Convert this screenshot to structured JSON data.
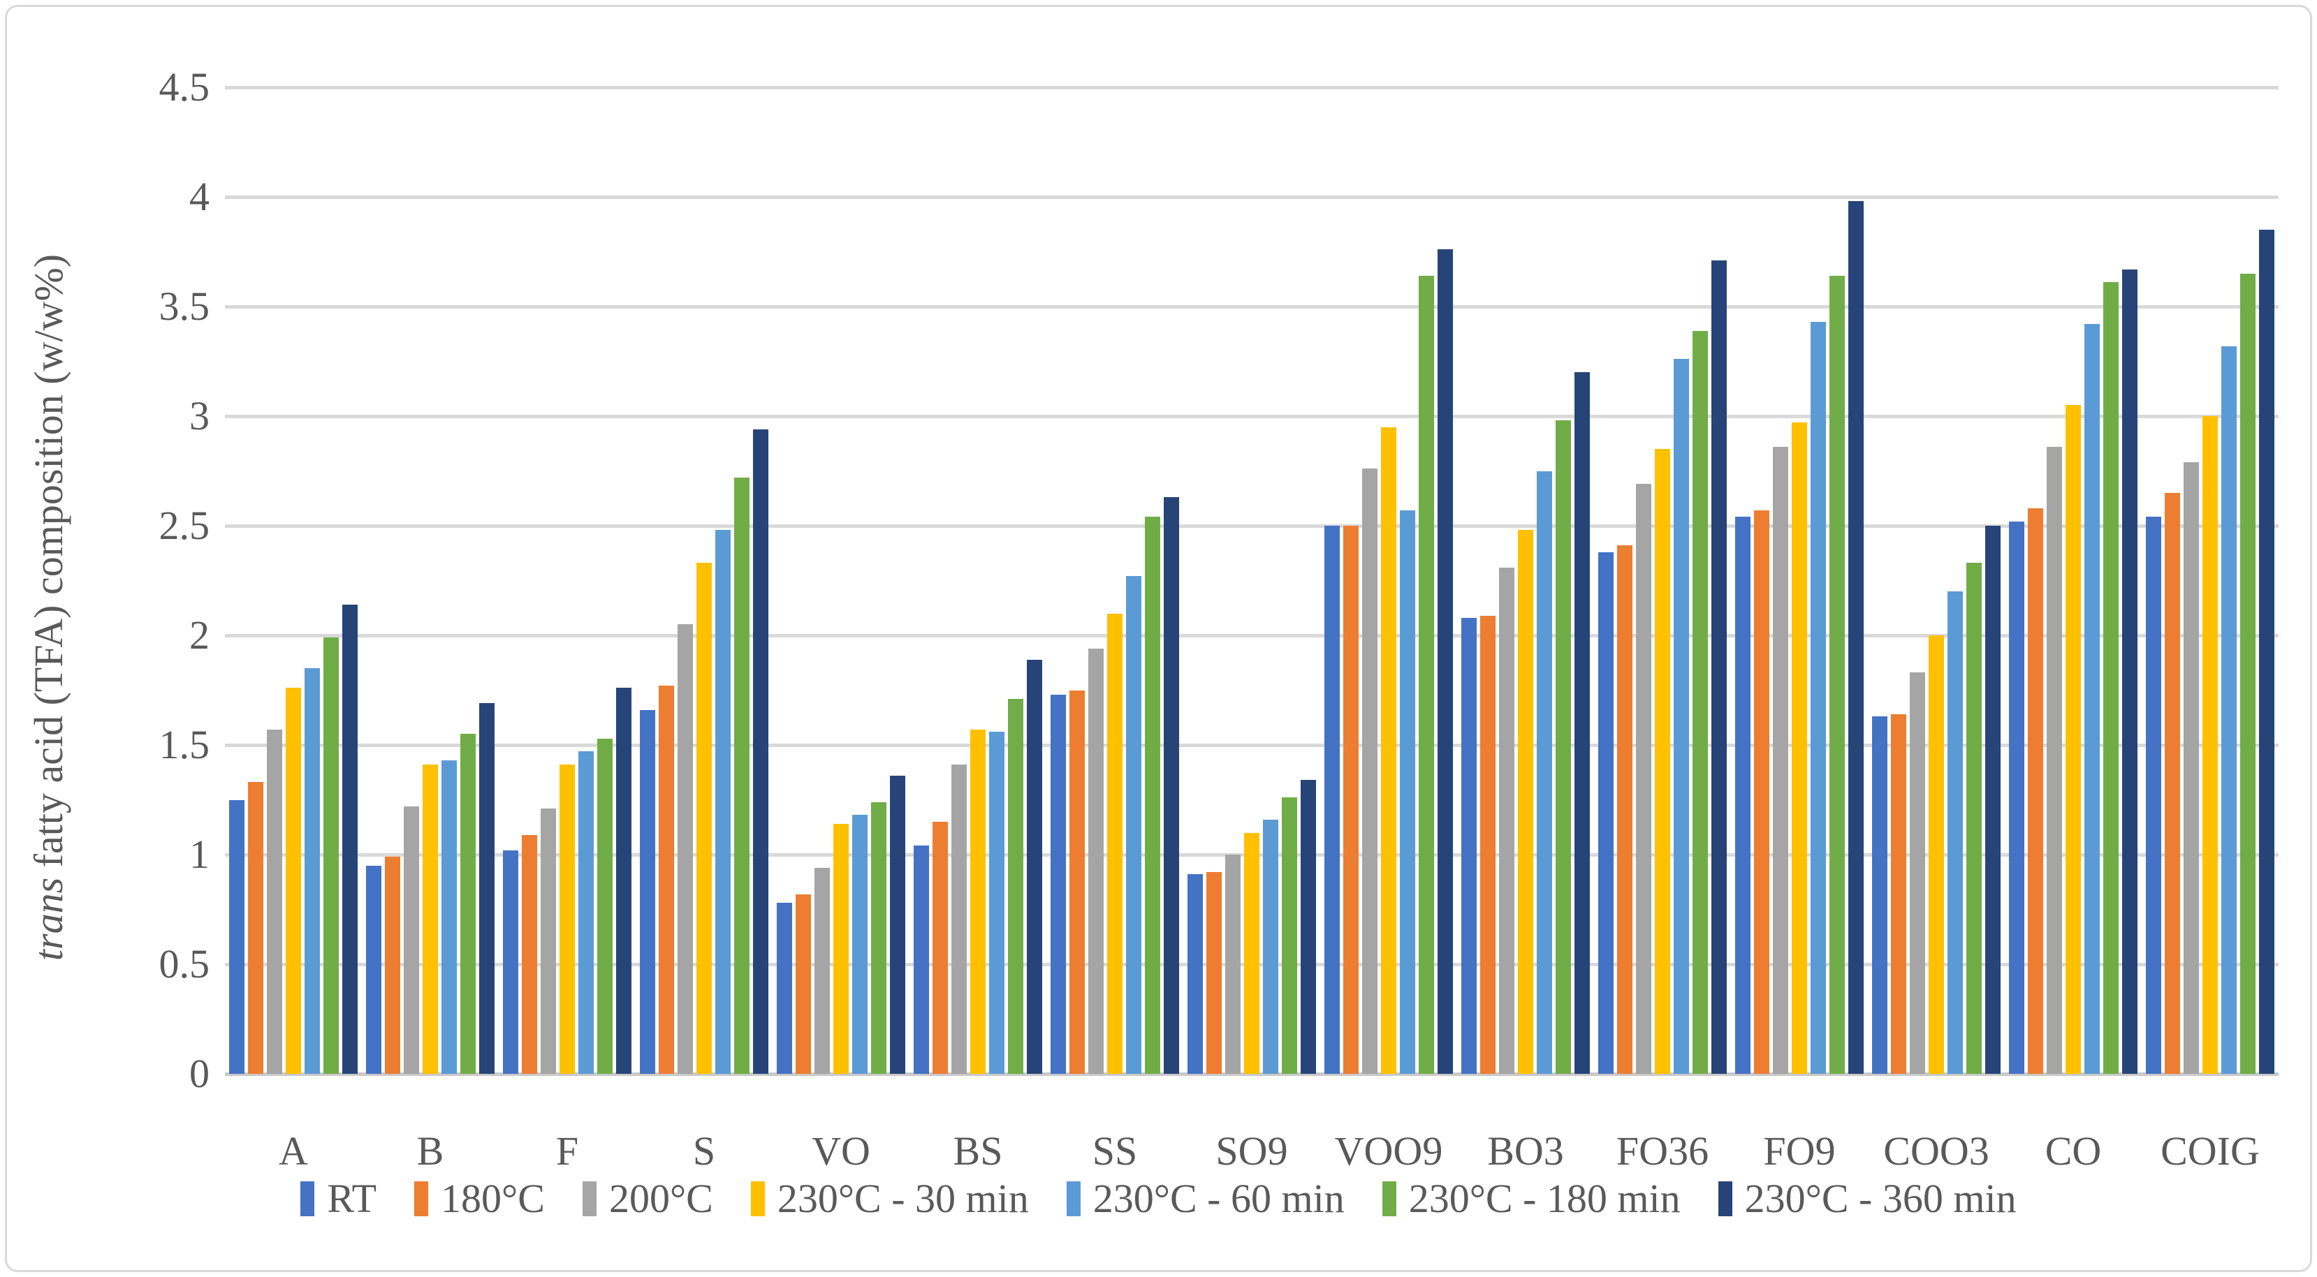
{
  "colors": {
    "background": "#FFFFFF",
    "border": "#D9D9D9",
    "grid": "#D9D9D9",
    "axis": "#C9C9C9",
    "text": "#595959"
  },
  "y_axis_title": {
    "italic_part": "trans",
    "rest_part": " fatty acid (TFA) composition (w/w%)"
  },
  "chart_data": {
    "type": "bar",
    "title": "",
    "xlabel": "",
    "ylabel": "trans fatty acid (TFA) composition (w/w%)",
    "ylim": [
      0,
      4.5
    ],
    "ytick_step": 0.5,
    "yticks": [
      "0",
      "0.5",
      "1",
      "1.5",
      "2",
      "2.5",
      "3",
      "3.5",
      "4",
      "4.5"
    ],
    "grid": true,
    "legend_position": "bottom",
    "categories": [
      "A",
      "B",
      "F",
      "S",
      "VO",
      "BS",
      "SS",
      "SO9",
      "VOO9",
      "BO3",
      "FO36",
      "FO9",
      "COO3",
      "CO",
      "COIG"
    ],
    "series": [
      {
        "name": "RT",
        "color": "#4472C4",
        "values": [
          1.25,
          0.95,
          1.02,
          1.66,
          0.78,
          1.04,
          1.73,
          0.91,
          2.5,
          2.08,
          2.38,
          2.54,
          1.63,
          2.52,
          2.54
        ]
      },
      {
        "name": "180°C",
        "color": "#ED7D31",
        "values": [
          1.33,
          0.99,
          1.09,
          1.77,
          0.82,
          1.15,
          1.75,
          0.92,
          2.5,
          2.09,
          2.41,
          2.57,
          1.64,
          2.58,
          2.65
        ]
      },
      {
        "name": "200°C",
        "color": "#A5A5A5",
        "values": [
          1.57,
          1.22,
          1.21,
          2.05,
          0.94,
          1.41,
          1.94,
          1.0,
          2.76,
          2.31,
          2.69,
          2.86,
          1.83,
          2.86,
          2.79
        ]
      },
      {
        "name": "230°C - 30 min",
        "color": "#FFC000",
        "values": [
          1.76,
          1.41,
          1.41,
          2.33,
          1.14,
          1.57,
          2.1,
          1.1,
          2.95,
          2.48,
          2.85,
          2.97,
          2.0,
          3.05,
          3.0
        ]
      },
      {
        "name": "230°C - 60 min",
        "color": "#5B9BD5",
        "values": [
          1.85,
          1.43,
          1.47,
          2.48,
          1.18,
          1.56,
          2.27,
          1.16,
          2.57,
          2.75,
          3.26,
          3.43,
          2.2,
          3.42,
          3.32
        ]
      },
      {
        "name": "230°C - 180 min",
        "color": "#70AD47",
        "values": [
          1.99,
          1.55,
          1.53,
          2.72,
          1.24,
          1.71,
          2.54,
          1.26,
          3.64,
          2.98,
          3.39,
          3.64,
          2.33,
          3.61,
          3.65
        ]
      },
      {
        "name": "230°C - 360 min",
        "color": "#264478",
        "values": [
          2.14,
          1.69,
          1.76,
          2.94,
          1.36,
          1.89,
          2.63,
          1.34,
          3.76,
          3.2,
          3.71,
          3.98,
          2.5,
          3.67,
          3.85
        ]
      }
    ]
  }
}
